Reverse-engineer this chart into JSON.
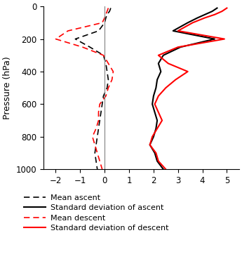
{
  "pressure_levels": [
    10,
    30,
    50,
    70,
    100,
    150,
    200,
    250,
    300,
    350,
    400,
    450,
    500,
    550,
    600,
    650,
    700,
    750,
    800,
    850,
    900,
    950,
    1000
  ],
  "mean_ascent": [
    0.25,
    0.2,
    0.1,
    0.05,
    0.0,
    -0.25,
    -1.2,
    -0.6,
    -0.05,
    0.05,
    0.1,
    0.15,
    0.1,
    -0.05,
    -0.1,
    -0.15,
    -0.2,
    -0.25,
    -0.3,
    -0.35,
    -0.4,
    -0.35,
    -0.3
  ],
  "std_ascent": [
    4.6,
    4.4,
    4.1,
    3.8,
    3.4,
    2.8,
    4.5,
    3.1,
    2.4,
    2.2,
    2.3,
    2.15,
    2.1,
    2.0,
    1.95,
    2.05,
    2.15,
    2.1,
    2.0,
    1.85,
    2.05,
    2.15,
    2.4
  ],
  "mean_descent": [
    0.15,
    0.1,
    0.05,
    0.0,
    -0.1,
    -1.5,
    -2.0,
    -0.9,
    -0.05,
    0.15,
    0.35,
    0.3,
    0.15,
    0.05,
    -0.2,
    -0.25,
    -0.25,
    -0.35,
    -0.5,
    -0.4,
    -0.3,
    -0.2,
    -0.1
  ],
  "std_descent": [
    5.0,
    4.8,
    4.5,
    4.1,
    3.6,
    3.0,
    4.9,
    3.0,
    2.2,
    2.6,
    3.4,
    2.9,
    2.5,
    2.2,
    2.05,
    2.2,
    2.35,
    2.15,
    1.95,
    1.85,
    2.1,
    2.2,
    2.5
  ],
  "xlim": [
    -2.5,
    5.5
  ],
  "ylim": [
    1000,
    0
  ],
  "xticks": [
    -2,
    -1,
    0,
    1,
    2,
    3,
    4,
    5
  ],
  "yticks": [
    0,
    200,
    400,
    600,
    800,
    1000
  ],
  "ylabel": "Pressure (hPa)",
  "vline_x": 0,
  "black_color": "#000000",
  "red_color": "#FF0000",
  "gray_color": "#808080",
  "legend_entries": [
    "Mean ascent",
    "Standard deviation of ascent",
    "Mean descent",
    "Standard deviation of descent"
  ],
  "background_color": "#ffffff",
  "figsize": [
    3.45,
    3.89
  ],
  "dpi": 100
}
